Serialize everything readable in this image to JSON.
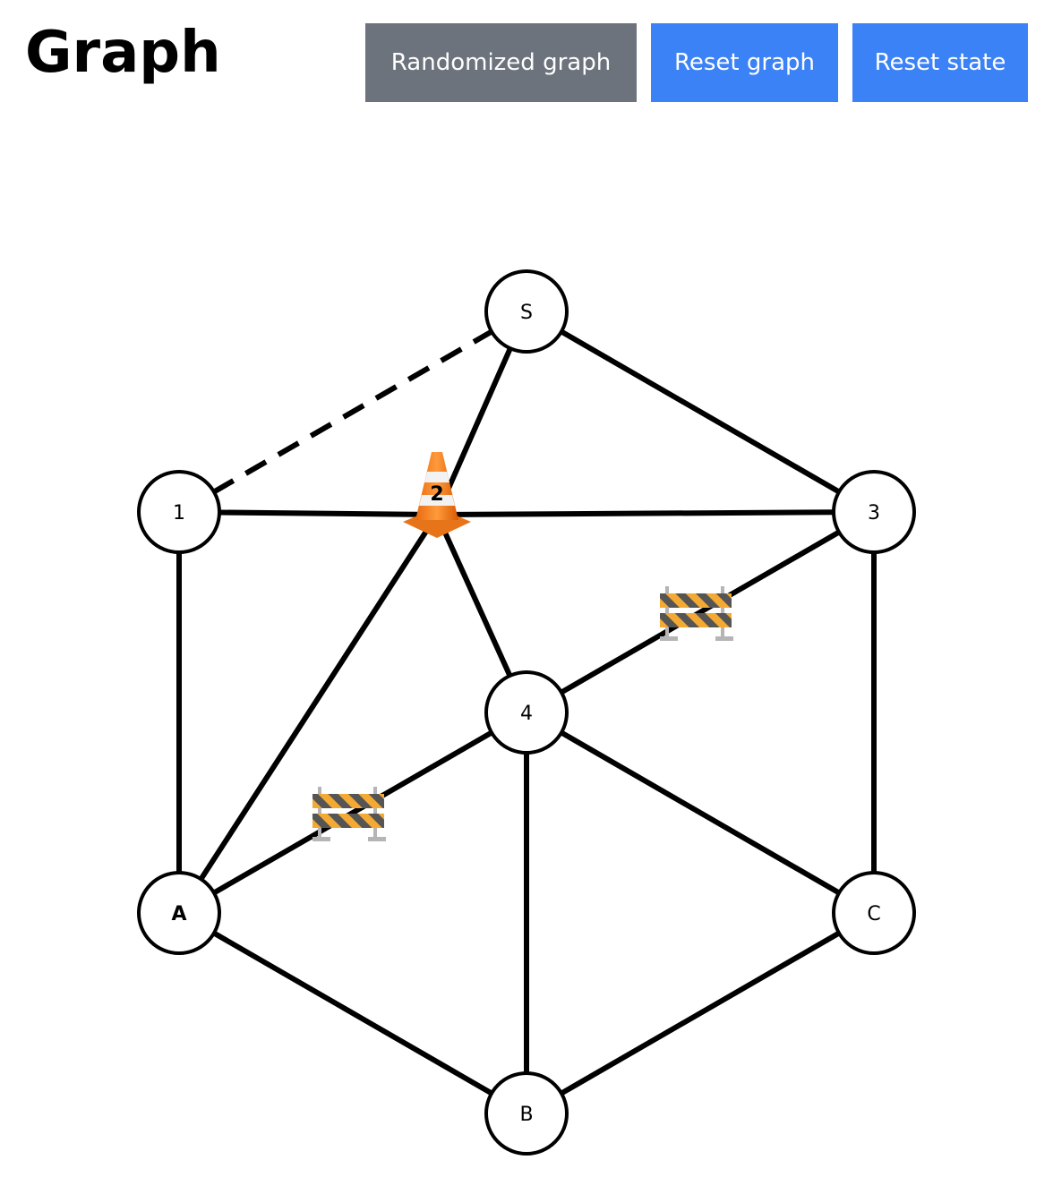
{
  "header": {
    "title": "Graph"
  },
  "toolbar": {
    "randomized_label": "Randomized graph",
    "reset_graph_label": "Reset graph",
    "reset_state_label": "Reset state"
  },
  "colors": {
    "randomized_button": "#6c737c",
    "primary_button": "#3b82f6",
    "edge": "#000000",
    "node_fill": "#ffffff",
    "node_stroke": "#000000"
  },
  "graph": {
    "nodes": [
      {
        "id": "S",
        "label": "S"
      },
      {
        "id": "1",
        "label": "1"
      },
      {
        "id": "2",
        "label": "2"
      },
      {
        "id": "3",
        "label": "3"
      },
      {
        "id": "4",
        "label": "4"
      },
      {
        "id": "A",
        "label": "A"
      },
      {
        "id": "B",
        "label": "B"
      },
      {
        "id": "C",
        "label": "C"
      }
    ],
    "edges": [
      {
        "from": "S",
        "to": "1",
        "style": "dashed"
      },
      {
        "from": "S",
        "to": "2",
        "style": "solid"
      },
      {
        "from": "S",
        "to": "3",
        "style": "solid"
      },
      {
        "from": "1",
        "to": "2",
        "style": "solid"
      },
      {
        "from": "2",
        "to": "3",
        "style": "solid"
      },
      {
        "from": "1",
        "to": "A",
        "style": "solid"
      },
      {
        "from": "2",
        "to": "A",
        "style": "solid"
      },
      {
        "from": "2",
        "to": "4",
        "style": "solid"
      },
      {
        "from": "3",
        "to": "4",
        "style": "solid",
        "blocked": true
      },
      {
        "from": "3",
        "to": "C",
        "style": "solid"
      },
      {
        "from": "4",
        "to": "A",
        "style": "solid",
        "blocked": true
      },
      {
        "from": "4",
        "to": "B",
        "style": "solid"
      },
      {
        "from": "4",
        "to": "C",
        "style": "solid"
      },
      {
        "from": "A",
        "to": "B",
        "style": "solid"
      },
      {
        "from": "B",
        "to": "C",
        "style": "solid"
      }
    ],
    "current_node": "2",
    "current_marker_icon": "traffic-cone-icon",
    "blocked_marker_icon": "roadblock-icon"
  }
}
